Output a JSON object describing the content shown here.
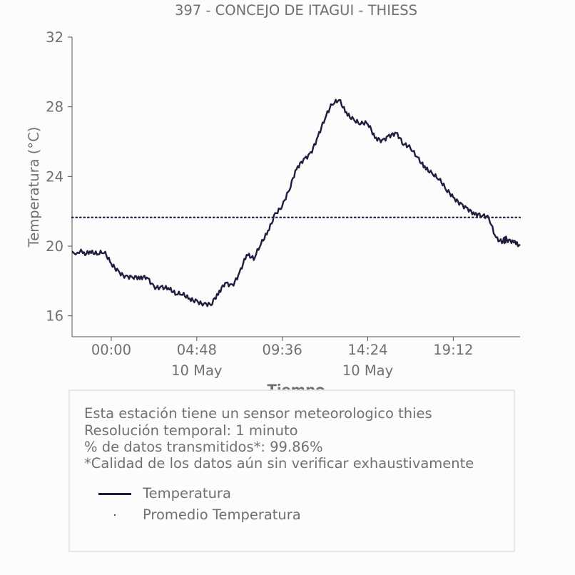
{
  "chart_data": {
    "type": "line",
    "title": "397 - CONCEJO DE ITAGUI - THIESS",
    "xlabel": "Tiempo",
    "ylabel": "Temperatura (°C)",
    "ylim": [
      14.8,
      32
    ],
    "yticks": [
      16,
      20,
      24,
      28,
      32
    ],
    "xlim_hours": [
      -2.2,
      22.95
    ],
    "xticks": [
      {
        "hour": 0,
        "label": "00:00",
        "sublabel": ""
      },
      {
        "hour": 4.8,
        "label": "04:48",
        "sublabel": "10 May"
      },
      {
        "hour": 9.6,
        "label": "09:36",
        "sublabel": ""
      },
      {
        "hour": 14.4,
        "label": "14:24",
        "sublabel": "10 May"
      },
      {
        "hour": 19.2,
        "label": "19:12",
        "sublabel": ""
      }
    ],
    "grid": false,
    "series": [
      {
        "name": "Temperatura",
        "color": "#1e1e3f",
        "style": "solid",
        "x_hours": [
          -2.2,
          -1.6,
          -1.2,
          -0.8,
          -0.4,
          0,
          0.4,
          0.8,
          1.2,
          1.6,
          2.0,
          2.4,
          2.8,
          3.2,
          3.6,
          4.0,
          4.4,
          4.8,
          5.2,
          5.6,
          6.0,
          6.4,
          6.8,
          7.2,
          7.6,
          8.0,
          8.4,
          8.8,
          9.2,
          9.6,
          10.0,
          10.4,
          10.8,
          11.2,
          11.6,
          12.0,
          12.4,
          12.8,
          13.2,
          13.6,
          14.0,
          14.4,
          14.8,
          15.2,
          15.6,
          16.0,
          16.4,
          16.8,
          17.2,
          17.6,
          18.0,
          18.4,
          18.8,
          19.2,
          19.6,
          20.0,
          20.4,
          20.8,
          21.2,
          21.6,
          22.0,
          22.2,
          22.6,
          22.95
        ],
        "values": [
          19.7,
          19.6,
          19.7,
          19.5,
          19.6,
          19.0,
          18.6,
          18.3,
          18.2,
          18.1,
          18.2,
          17.7,
          17.7,
          17.6,
          17.2,
          17.2,
          17.0,
          16.9,
          16.7,
          16.6,
          17.2,
          17.9,
          17.8,
          18.5,
          19.5,
          19.2,
          20.1,
          20.9,
          21.9,
          22.3,
          23.2,
          24.4,
          25.0,
          25.4,
          26.3,
          27.3,
          28.1,
          28.4,
          27.7,
          27.3,
          27.0,
          27.0,
          26.2,
          26.1,
          26.4,
          26.5,
          25.8,
          25.6,
          25.1,
          24.6,
          24.2,
          23.8,
          23.2,
          22.8,
          22.5,
          22.2,
          21.8,
          21.7,
          21.6,
          20.5,
          20.3,
          20.4,
          20.2,
          20.1
        ]
      },
      {
        "name": "Promedio Temperatura",
        "color": "#1e1e3f",
        "style": "dotted",
        "value": 21.65
      }
    ]
  },
  "info": {
    "line1": "Esta estación tiene un sensor meteorologico thies",
    "line2": "Resolución temporal: 1 minuto",
    "line3": "% de datos transmitidos*: 99.86%",
    "line4": "*Calidad de los datos aún sin verificar exhaustivamente"
  },
  "legend": [
    {
      "label": "Temperatura",
      "marker": "line"
    },
    {
      "label": "Promedio Temperatura",
      "marker": "dot"
    }
  ],
  "colors": {
    "series": "#1e1e3f",
    "text": "#707070",
    "axis": "#555555",
    "box_border": "#e6e6e6",
    "background": "#fcfcfc"
  }
}
